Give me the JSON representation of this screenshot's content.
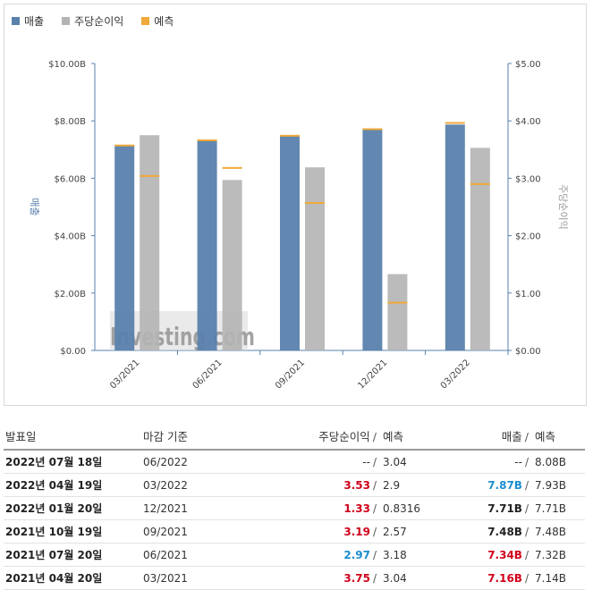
{
  "legend": {
    "revenue": "매출",
    "eps": "주당순이익",
    "forecast": "예측"
  },
  "colors": {
    "revenue": "#5a81ac",
    "eps": "#b4b4b4",
    "forecast": "#f0a93a",
    "beat": "#d0021b",
    "miss": "#1d8ecf"
  },
  "chart_data": {
    "type": "bar",
    "categories": [
      "03/2021",
      "06/2021",
      "09/2021",
      "12/2021",
      "03/2022"
    ],
    "series": [
      {
        "name": "매출",
        "axis": "left",
        "values": [
          7.16,
          7.34,
          7.48,
          7.71,
          7.87
        ],
        "forecast": [
          7.14,
          7.32,
          7.48,
          7.71,
          7.93
        ]
      },
      {
        "name": "주당순이익",
        "axis": "right",
        "values": [
          3.75,
          2.97,
          3.19,
          1.33,
          3.53
        ],
        "forecast": [
          3.04,
          3.18,
          2.57,
          0.8316,
          2.9
        ]
      }
    ],
    "left_axis": {
      "label": "매출",
      "ticks": [
        "$0.00",
        "$2.00B",
        "$4.00B",
        "$6.00B",
        "$8.00B",
        "$10.00B"
      ],
      "ylim": [
        0,
        10
      ]
    },
    "right_axis": {
      "label": "주당순이익",
      "ticks": [
        "$0.00",
        "$1.00",
        "$2.00",
        "$3.00",
        "$4.00",
        "$5.00"
      ],
      "ylim": [
        0,
        5
      ]
    },
    "watermark": "Investing.com",
    "legend_position": "top-left"
  },
  "table": {
    "headers": {
      "announce": "발표일",
      "period_end": "마감 기준",
      "eps": "주당순이익",
      "eps_forecast": "예측",
      "revenue": "매출",
      "revenue_forecast": "예측"
    },
    "separator": "/",
    "rows": [
      {
        "date": "2022년 07월 18일",
        "period": "06/2022",
        "eps": "--",
        "eps_status": "neu",
        "eps_fc": "3.04",
        "rev": "--",
        "rev_status": "neu",
        "rev_fc": "8.08B"
      },
      {
        "date": "2022년 04월 19일",
        "period": "03/2022",
        "eps": "3.53",
        "eps_status": "pos",
        "eps_fc": "2.9",
        "rev": "7.87B",
        "rev_status": "neg",
        "rev_fc": "7.93B"
      },
      {
        "date": "2022년 01월 20일",
        "period": "12/2021",
        "eps": "1.33",
        "eps_status": "pos",
        "eps_fc": "0.8316",
        "rev": "7.71B",
        "rev_status": "neu_bold",
        "rev_fc": "7.71B"
      },
      {
        "date": "2021년 10월 19일",
        "period": "09/2021",
        "eps": "3.19",
        "eps_status": "pos",
        "eps_fc": "2.57",
        "rev": "7.48B",
        "rev_status": "neu_bold",
        "rev_fc": "7.48B"
      },
      {
        "date": "2021년 07월 20일",
        "period": "06/2021",
        "eps": "2.97",
        "eps_status": "neg",
        "eps_fc": "3.18",
        "rev": "7.34B",
        "rev_status": "pos",
        "rev_fc": "7.32B"
      },
      {
        "date": "2021년 04월 20일",
        "period": "03/2021",
        "eps": "3.75",
        "eps_status": "pos",
        "eps_fc": "3.04",
        "rev": "7.16B",
        "rev_status": "pos",
        "rev_fc": "7.14B"
      }
    ]
  }
}
